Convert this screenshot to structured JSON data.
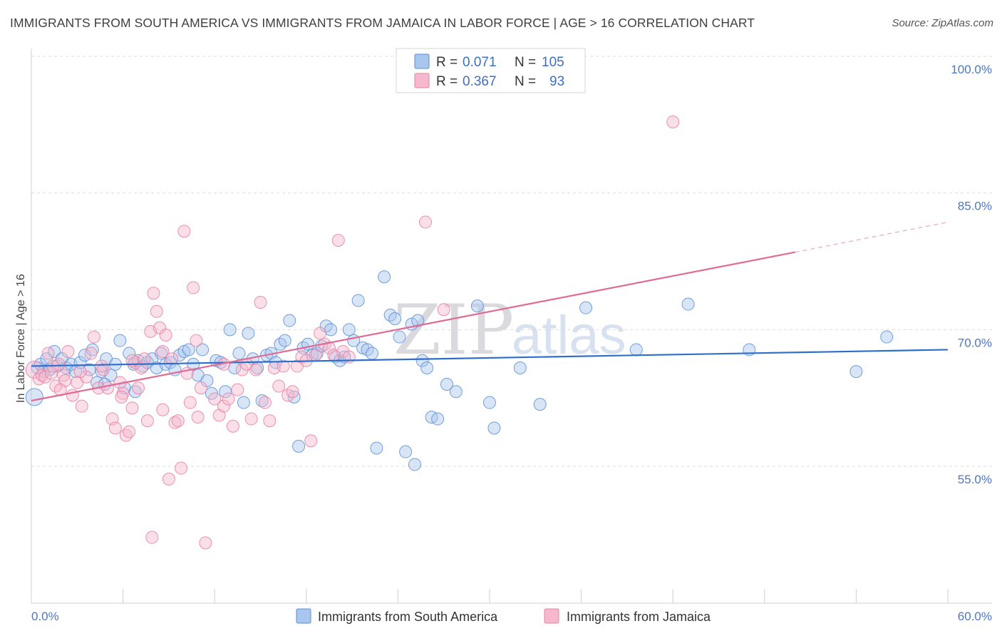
{
  "title": "IMMIGRANTS FROM SOUTH AMERICA VS IMMIGRANTS FROM JAMAICA IN LABOR FORCE | AGE > 16 CORRELATION CHART",
  "source": "Source: ZipAtlas.com",
  "watermark": {
    "zip": "ZIP",
    "atlas": "atlas"
  },
  "colors": {
    "blue": "#5b8fd6",
    "blue_fill": "#a9c6ee",
    "pink": "#e87fa3",
    "pink_fill": "#f5b8cc",
    "blue_line": "#2e6fcc",
    "pink_line": "#e06b94",
    "grid": "#dcdcdc"
  },
  "legend": {
    "rows": [
      {
        "r_label": "R =",
        "r_value": "0.071",
        "n_label": "N =",
        "n_value": "105"
      },
      {
        "r_label": "R =",
        "r_value": "0.367",
        "n_label": "N =",
        "n_value": "93"
      }
    ]
  },
  "chart_data": {
    "type": "scatter",
    "title": "IMMIGRANTS FROM SOUTH AMERICA VS IMMIGRANTS FROM JAMAICA IN LABOR FORCE | AGE > 16 CORRELATION CHART",
    "xlabel": "",
    "ylabel": "In Labor Force | Age > 16",
    "xlim": [
      0,
      60
    ],
    "ylim": [
      40,
      103
    ],
    "x_tick_labels": [
      "0.0%",
      "60.0%"
    ],
    "y_ticks": [
      55,
      70,
      85,
      100
    ],
    "y_tick_labels": [
      "55.0%",
      "70.0%",
      "85.0%",
      "100.0%"
    ],
    "grid": "horizontal dashed",
    "legend_position": "top-center",
    "series": [
      {
        "name": "Immigrants from South America",
        "color": "#5b8fd6",
        "trend": {
          "x": [
            0,
            60
          ],
          "y": [
            66.0,
            67.8
          ]
        },
        "points": [
          [
            0.2,
            62.6
          ],
          [
            0.4,
            65.8
          ],
          [
            0.6,
            66.2
          ],
          [
            0.8,
            65.4
          ],
          [
            1.0,
            66.8
          ],
          [
            1.2,
            65.6
          ],
          [
            1.5,
            67.6
          ],
          [
            1.7,
            66.0
          ],
          [
            2.0,
            66.8
          ],
          [
            2.3,
            65.8
          ],
          [
            2.6,
            66.2
          ],
          [
            2.9,
            65.4
          ],
          [
            3.2,
            66.4
          ],
          [
            3.5,
            67.2
          ],
          [
            3.8,
            65.6
          ],
          [
            4.0,
            67.8
          ],
          [
            4.3,
            64.2
          ],
          [
            4.6,
            65.4
          ],
          [
            4.9,
            66.8
          ],
          [
            5.2,
            65.0
          ],
          [
            5.5,
            66.2
          ],
          [
            5.8,
            68.8
          ],
          [
            6.1,
            63.6
          ],
          [
            6.4,
            67.4
          ],
          [
            6.7,
            66.2
          ],
          [
            7.0,
            66.6
          ],
          [
            7.3,
            66.0
          ],
          [
            7.6,
            66.4
          ],
          [
            7.9,
            66.8
          ],
          [
            8.2,
            65.8
          ],
          [
            8.5,
            67.4
          ],
          [
            8.8,
            66.2
          ],
          [
            9.1,
            66.4
          ],
          [
            9.4,
            65.6
          ],
          [
            9.7,
            67.2
          ],
          [
            10.0,
            67.6
          ],
          [
            10.3,
            67.8
          ],
          [
            10.6,
            66.2
          ],
          [
            10.9,
            65.0
          ],
          [
            11.2,
            67.8
          ],
          [
            11.5,
            64.4
          ],
          [
            11.8,
            63.0
          ],
          [
            12.1,
            66.6
          ],
          [
            12.4,
            66.4
          ],
          [
            12.7,
            63.2
          ],
          [
            13.0,
            70.0
          ],
          [
            13.3,
            65.8
          ],
          [
            13.6,
            67.4
          ],
          [
            13.9,
            62.0
          ],
          [
            14.2,
            69.6
          ],
          [
            14.5,
            66.8
          ],
          [
            14.8,
            65.8
          ],
          [
            15.1,
            62.2
          ],
          [
            15.4,
            67.2
          ],
          [
            15.7,
            67.4
          ],
          [
            16.0,
            66.4
          ],
          [
            16.3,
            68.4
          ],
          [
            16.6,
            68.8
          ],
          [
            16.9,
            71.0
          ],
          [
            17.2,
            62.6
          ],
          [
            17.5,
            57.2
          ],
          [
            17.8,
            68.0
          ],
          [
            18.1,
            68.4
          ],
          [
            18.4,
            67.2
          ],
          [
            18.7,
            67.4
          ],
          [
            19.0,
            68.2
          ],
          [
            19.3,
            70.4
          ],
          [
            19.6,
            70.0
          ],
          [
            19.9,
            67.0
          ],
          [
            20.2,
            66.6
          ],
          [
            20.5,
            67.0
          ],
          [
            20.8,
            70.0
          ],
          [
            21.1,
            68.8
          ],
          [
            21.4,
            73.2
          ],
          [
            21.7,
            68.0
          ],
          [
            22.0,
            67.8
          ],
          [
            22.3,
            67.4
          ],
          [
            22.6,
            57.0
          ],
          [
            23.1,
            75.8
          ],
          [
            23.5,
            71.6
          ],
          [
            23.8,
            71.2
          ],
          [
            24.1,
            69.2
          ],
          [
            24.5,
            56.6
          ],
          [
            24.9,
            70.6
          ],
          [
            25.3,
            71.0
          ],
          [
            25.1,
            55.2
          ],
          [
            25.6,
            66.6
          ],
          [
            25.9,
            65.8
          ],
          [
            26.2,
            60.4
          ],
          [
            26.6,
            60.2
          ],
          [
            27.2,
            64.0
          ],
          [
            27.8,
            63.2
          ],
          [
            29.2,
            72.6
          ],
          [
            30.0,
            62.0
          ],
          [
            30.3,
            59.2
          ],
          [
            32.0,
            65.8
          ],
          [
            33.3,
            61.8
          ],
          [
            36.3,
            72.4
          ],
          [
            39.6,
            67.8
          ],
          [
            43.0,
            72.8
          ],
          [
            47.0,
            67.8
          ],
          [
            54.0,
            65.4
          ],
          [
            56.0,
            69.2
          ],
          [
            4.8,
            64.0
          ],
          [
            6.8,
            63.2
          ]
        ]
      },
      {
        "name": "Immigrants from Jamaica",
        "color": "#e87fa3",
        "trend": {
          "x": [
            0,
            50
          ],
          "y": [
            62.2,
            78.5
          ],
          "dashed_x": [
            50,
            60
          ],
          "dashed_y": [
            78.5,
            81.8
          ]
        },
        "points": [
          [
            0.2,
            65.6
          ],
          [
            0.5,
            64.6
          ],
          [
            0.7,
            65.0
          ],
          [
            0.9,
            64.8
          ],
          [
            1.1,
            67.4
          ],
          [
            1.3,
            65.2
          ],
          [
            1.6,
            63.8
          ],
          [
            1.8,
            66.2
          ],
          [
            2.1,
            65.0
          ],
          [
            2.4,
            67.6
          ],
          [
            2.7,
            62.8
          ],
          [
            3.0,
            64.2
          ],
          [
            3.3,
            61.6
          ],
          [
            3.6,
            64.8
          ],
          [
            3.9,
            67.4
          ],
          [
            4.1,
            69.2
          ],
          [
            4.4,
            63.6
          ],
          [
            4.7,
            65.6
          ],
          [
            5.0,
            63.6
          ],
          [
            5.3,
            60.2
          ],
          [
            5.5,
            59.2
          ],
          [
            5.8,
            64.2
          ],
          [
            6.0,
            63.0
          ],
          [
            6.2,
            58.4
          ],
          [
            6.4,
            58.8
          ],
          [
            6.6,
            61.4
          ],
          [
            6.8,
            66.4
          ],
          [
            7.0,
            63.6
          ],
          [
            7.2,
            65.8
          ],
          [
            7.4,
            66.8
          ],
          [
            7.6,
            60.0
          ],
          [
            7.8,
            69.8
          ],
          [
            8.0,
            74.0
          ],
          [
            8.2,
            72.0
          ],
          [
            8.4,
            70.2
          ],
          [
            8.6,
            61.2
          ],
          [
            8.8,
            69.4
          ],
          [
            9.0,
            53.6
          ],
          [
            9.2,
            66.8
          ],
          [
            9.4,
            59.8
          ],
          [
            9.6,
            60.0
          ],
          [
            9.8,
            54.8
          ],
          [
            10.0,
            80.8
          ],
          [
            10.2,
            65.2
          ],
          [
            10.4,
            62.0
          ],
          [
            10.6,
            74.6
          ],
          [
            10.9,
            60.4
          ],
          [
            11.1,
            63.6
          ],
          [
            11.4,
            46.6
          ],
          [
            12.0,
            62.4
          ],
          [
            12.3,
            60.6
          ],
          [
            12.6,
            61.6
          ],
          [
            12.9,
            62.4
          ],
          [
            13.2,
            59.4
          ],
          [
            13.5,
            63.4
          ],
          [
            13.8,
            65.6
          ],
          [
            14.1,
            66.2
          ],
          [
            14.4,
            60.2
          ],
          [
            14.7,
            65.6
          ],
          [
            15.0,
            73.0
          ],
          [
            15.3,
            62.0
          ],
          [
            15.6,
            60.0
          ],
          [
            15.9,
            65.8
          ],
          [
            16.2,
            63.8
          ],
          [
            16.5,
            66.0
          ],
          [
            16.8,
            62.8
          ],
          [
            17.1,
            63.2
          ],
          [
            17.4,
            66.0
          ],
          [
            17.7,
            67.0
          ],
          [
            18.0,
            66.6
          ],
          [
            18.3,
            57.8
          ],
          [
            18.6,
            67.2
          ],
          [
            18.9,
            69.6
          ],
          [
            19.2,
            68.4
          ],
          [
            19.5,
            68.0
          ],
          [
            19.8,
            67.2
          ],
          [
            20.1,
            79.8
          ],
          [
            20.4,
            67.6
          ],
          [
            20.8,
            67.0
          ],
          [
            25.8,
            81.8
          ],
          [
            27.0,
            72.2
          ],
          [
            42.0,
            92.8
          ],
          [
            3.2,
            65.4
          ],
          [
            2.2,
            64.4
          ],
          [
            1.4,
            66.0
          ],
          [
            4.6,
            66.0
          ],
          [
            6.6,
            66.6
          ],
          [
            8.6,
            67.6
          ],
          [
            10.8,
            68.8
          ],
          [
            12.6,
            66.2
          ],
          [
            7.9,
            47.2
          ],
          [
            5.9,
            62.6
          ],
          [
            1.9,
            63.4
          ]
        ]
      }
    ]
  },
  "x_axis": {
    "left_label": "0.0%",
    "right_label": "60.0%"
  },
  "bottom_legend": {
    "items": [
      {
        "label": "Immigrants from South America"
      },
      {
        "label": "Immigrants from Jamaica"
      }
    ]
  }
}
